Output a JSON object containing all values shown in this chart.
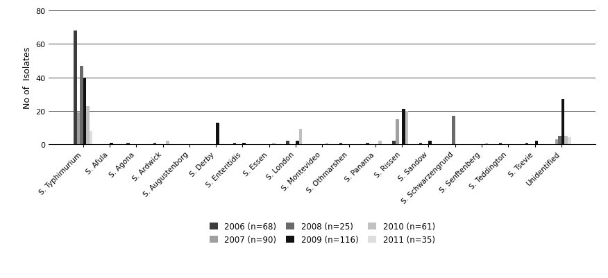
{
  "categories": [
    "S. Typhimurium",
    "S. Afula",
    "S. Agona",
    "S. Ardwick",
    "S. Augustenborg",
    "S. Derby",
    "S. Enteritidis",
    "S. Essen",
    "S. London",
    "S. Montevideo",
    "S. Othmarshen",
    "S. Panama",
    "S. Rissen",
    "S. Sandow",
    "S. Schwarzengrund",
    "S. Senftenberg",
    "S. Teddington",
    "S. Tsevie",
    "Unidentified"
  ],
  "years": [
    "2006 (n=68)",
    "2007 (n=90)",
    "2008 (n=25)",
    "2009 (n=116)",
    "2010 (n=61)",
    "2011 (n=35)"
  ],
  "colors": [
    "#3c3c3c",
    "#a0a0a0",
    "#6a6a6a",
    "#111111",
    "#c0c0c0",
    "#dedede"
  ],
  "data": {
    "2006 (n=68)": [
      68,
      0,
      1,
      1,
      0,
      0,
      1,
      0,
      2,
      0,
      1,
      1,
      2,
      1,
      0,
      0,
      1,
      1,
      0
    ],
    "2007 (n=90)": [
      19,
      0,
      0,
      0,
      0,
      0,
      0,
      0,
      0,
      0,
      0,
      0,
      15,
      0,
      0,
      0,
      0,
      0,
      3
    ],
    "2008 (n=25)": [
      47,
      0,
      0,
      0,
      0,
      0,
      0,
      0,
      0,
      0,
      0,
      0,
      0,
      0,
      17,
      0,
      0,
      0,
      5
    ],
    "2009 (n=116)": [
      40,
      1,
      0,
      0,
      0,
      13,
      1,
      0,
      2,
      0,
      0,
      0,
      21,
      2,
      0,
      0,
      0,
      2,
      27
    ],
    "2010 (n=61)": [
      23,
      0,
      0,
      2,
      0,
      0,
      0,
      1,
      9,
      1,
      0,
      2,
      20,
      0,
      0,
      1,
      0,
      0,
      5
    ],
    "2011 (n=35)": [
      8,
      0,
      0,
      0,
      0,
      0,
      0,
      0,
      0,
      0,
      0,
      0,
      0,
      0,
      0,
      0,
      0,
      0,
      4
    ]
  },
  "ylim": [
    0,
    80
  ],
  "yticks": [
    0,
    20,
    40,
    60,
    80
  ],
  "ylabel": "No of  Isolates",
  "figsize": [
    8.76,
    4.02
  ],
  "dpi": 100,
  "bar_width": 0.12
}
